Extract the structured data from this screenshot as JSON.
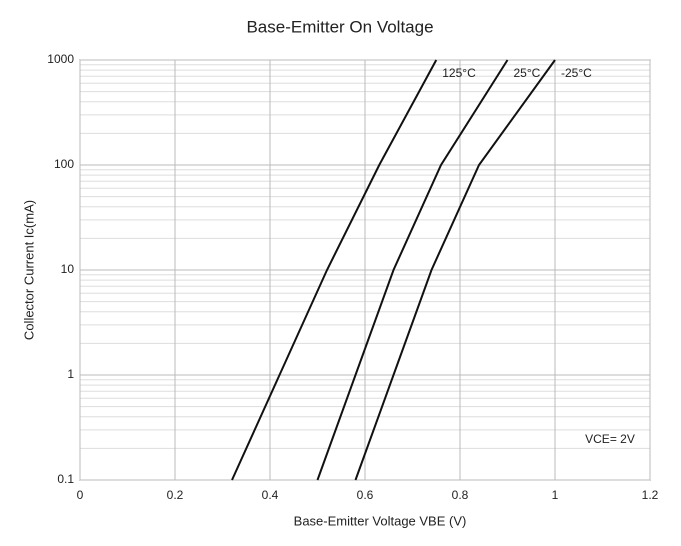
{
  "chart_data": {
    "type": "line",
    "title": "Base-Emitter On Voltage",
    "x_label": "Base-Emitter Voltage  VBE (V)",
    "y_label": "Collector Current  Ic(mA)",
    "annotation": "VCE= 2V",
    "log_y": true,
    "grid": true,
    "xlim": [
      0,
      1.2
    ],
    "xticks": [
      0,
      0.2,
      0.4,
      0.6,
      0.8,
      1,
      1.2
    ],
    "ylim": [
      0.1,
      1000
    ],
    "yticks": [
      0.1,
      1,
      10,
      100,
      1000
    ],
    "series": [
      {
        "name": "125°C",
        "color": "#111111",
        "x": [
          0.32,
          0.42,
          0.52,
          0.63,
          0.75
        ],
        "values": [
          0.1,
          1,
          10,
          100,
          1000
        ]
      },
      {
        "name": "25°C",
        "color": "#111111",
        "x": [
          0.5,
          0.58,
          0.66,
          0.76,
          0.9
        ],
        "values": [
          0.1,
          1,
          10,
          100,
          1000
        ]
      },
      {
        "name": "-25°C",
        "color": "#111111",
        "x": [
          0.58,
          0.66,
          0.74,
          0.84,
          1.0
        ],
        "values": [
          0.1,
          1,
          10,
          100,
          1000
        ]
      }
    ]
  }
}
